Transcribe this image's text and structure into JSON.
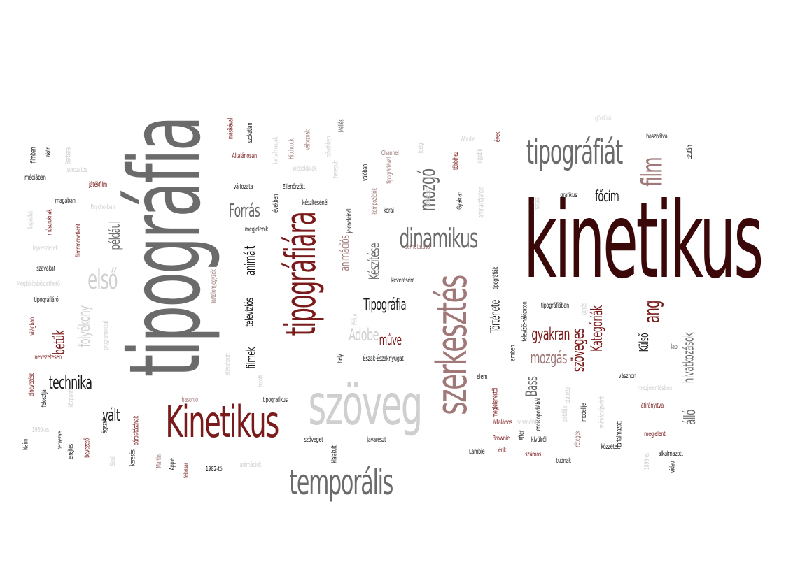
{
  "colors": {
    "dark_red": "#3a0808",
    "red": "#7a1a1a",
    "gray": "#6b6b6b",
    "light_gray": "#cfcfcf",
    "mauve": "#a07878",
    "black": "#1a1a1a"
  },
  "words": [
    {
      "text": "kinetikus",
      "color": "dark_red"
    },
    {
      "text": "tipográfia",
      "color": "gray"
    },
    {
      "text": "szöveg",
      "color": "light_gray"
    },
    {
      "text": "Kinetikus",
      "color": "red"
    },
    {
      "text": "szerkesztés",
      "color": "mauve"
    },
    {
      "text": "tipográfiára",
      "color": "red"
    },
    {
      "text": "temporális",
      "color": "gray"
    },
    {
      "text": "tipográfiát",
      "color": "gray"
    },
    {
      "text": "film",
      "color": "mauve"
    },
    {
      "text": "dinamikus",
      "color": "gray"
    },
    {
      "text": "mozgó",
      "color": "gray"
    },
    {
      "text": "első",
      "color": "light_gray"
    },
    {
      "text": "Forrás",
      "color": "gray"
    },
    {
      "text": "például",
      "color": "gray"
    },
    {
      "text": "technika",
      "color": "black"
    },
    {
      "text": "vált",
      "color": "black"
    },
    {
      "text": "betűk",
      "color": "red"
    },
    {
      "text": "folyékony",
      "color": "light_gray"
    },
    {
      "text": "animált",
      "color": "black"
    },
    {
      "text": "televíziós",
      "color": "black"
    },
    {
      "text": "filmek",
      "color": "black"
    },
    {
      "text": "Tipográfia",
      "color": "black"
    },
    {
      "text": "Adobe",
      "color": "light_gray"
    },
    {
      "text": "műve",
      "color": "red"
    },
    {
      "text": "Története",
      "color": "black"
    },
    {
      "text": "Bass",
      "color": "gray"
    },
    {
      "text": "gyakran",
      "color": "red"
    },
    {
      "text": "mozgás",
      "color": "mauve"
    },
    {
      "text": "Kategóriák",
      "color": "red"
    },
    {
      "text": "szöveges",
      "color": "red"
    },
    {
      "text": "ang",
      "color": "red"
    },
    {
      "text": "Külső",
      "color": "black"
    },
    {
      "text": "hivatkozások",
      "color": "gray"
    },
    {
      "text": "álló",
      "color": "gray"
    },
    {
      "text": "főcím",
      "color": "black"
    },
    {
      "text": "animációs",
      "color": "mauve"
    },
    {
      "text": "Készítése",
      "color": "gray"
    },
    {
      "text": "Ellenőrzött",
      "color": "black"
    },
    {
      "text": "változata",
      "color": "black"
    },
    {
      "text": "megjelenik",
      "color": "black"
    },
    {
      "text": "Általánosan",
      "color": "red"
    },
    {
      "text": "szokatlan",
      "color": "black"
    },
    {
      "text": "másikával",
      "color": "red"
    },
    {
      "text": "Hitchcock",
      "color": "mauve"
    },
    {
      "text": "tartalmaztak",
      "color": "light_gray"
    },
    {
      "text": "weboldalak",
      "color": "light_gray"
    },
    {
      "text": "változnak",
      "color": "mauve"
    },
    {
      "text": "bővebben",
      "color": "light_gray"
    },
    {
      "text": "Méliès",
      "color": "gray"
    },
    {
      "text": "herepult",
      "color": "light_gray"
    },
    {
      "text": "valóban",
      "color": "black"
    },
    {
      "text": "kompozíciók",
      "color": "mauve"
    },
    {
      "text": "tipográfiával",
      "color": "mauve"
    },
    {
      "text": "jeleneteinél",
      "color": "black"
    },
    {
      "text": "készítésénél",
      "color": "black"
    },
    {
      "text": "években",
      "color": "black"
    },
    {
      "text": "korai",
      "color": "black"
    },
    {
      "text": "Channel",
      "color": "mauve"
    },
    {
      "text": "ideig",
      "color": "light_gray"
    },
    {
      "text": "Wordle",
      "color": "light_gray"
    },
    {
      "text": "legjobb",
      "color": "light_gray"
    },
    {
      "text": "többihez",
      "color": "red"
    },
    {
      "text": "feldézzen",
      "color": "light_gray"
    },
    {
      "text": "Gyakran",
      "color": "black"
    },
    {
      "text": "animációjához",
      "color": "light_gray"
    },
    {
      "text": "évek",
      "color": "red"
    },
    {
      "text": "gördülő",
      "color": "light_gray"
    },
    {
      "text": "használva",
      "color": "black"
    },
    {
      "text": "Ezután",
      "color": "black"
    },
    {
      "text": "grafikus",
      "color": "black"
    },
    {
      "text": "hatást",
      "color": "light_gray"
    },
    {
      "text": "bemutatása",
      "color": "mauve"
    },
    {
      "text": "keverésére",
      "color": "black"
    },
    {
      "text": "tipográfiák",
      "color": "black"
    },
    {
      "text": "filmben",
      "color": "black"
    },
    {
      "text": "akár",
      "color": "black"
    },
    {
      "text": "Barbara",
      "color": "light_gray"
    },
    {
      "text": "sorozatos",
      "color": "light_gray"
    },
    {
      "text": "médiában",
      "color": "black"
    },
    {
      "text": "játékfilm",
      "color": "red"
    },
    {
      "text": "magában",
      "color": "black"
    },
    {
      "text": "Psycho-ban",
      "color": "light_gray"
    },
    {
      "text": "Segédlet",
      "color": "light_gray"
    },
    {
      "text": "műsoroknak",
      "color": "red"
    },
    {
      "text": "filmnmenetként",
      "color": "red"
    },
    {
      "text": "lapreszletek",
      "color": "light_gray"
    },
    {
      "text": "szavakat",
      "color": "black"
    },
    {
      "text": "Megkülönböztethető",
      "color": "light_gray"
    },
    {
      "text": "Tartalomjegyzék",
      "color": "mauve"
    },
    {
      "text": "tipográfiáról",
      "color": "black"
    },
    {
      "text": "világban",
      "color": "red"
    },
    {
      "text": "programokkal",
      "color": "light_gray"
    },
    {
      "text": "nevezetesen",
      "color": "red"
    },
    {
      "text": "ellenőrzött",
      "color": "light_gray"
    },
    {
      "text": "hely",
      "color": "black"
    },
    {
      "text": "Példa",
      "color": "light_gray"
    },
    {
      "text": "Észak-Északnyugat",
      "color": "black"
    },
    {
      "text": "elnevezése",
      "color": "red"
    },
    {
      "text": "felosztja",
      "color": "black"
    },
    {
      "text": "központi",
      "color": "light_gray"
    },
    {
      "text": "hasonló",
      "color": "mauve"
    },
    {
      "text": "futott",
      "color": "light_gray"
    },
    {
      "text": "tipografikus",
      "color": "black"
    },
    {
      "text": "szöveget",
      "color": "black"
    },
    {
      "text": "kialakult",
      "color": "black"
    },
    {
      "text": "javarészt",
      "color": "black"
    },
    {
      "text": "1960-as",
      "color": "light_gray"
    },
    {
      "text": "tervezve",
      "color": "black"
    },
    {
      "text": "Naim",
      "color": "black"
    },
    {
      "text": "elrejtés",
      "color": "black"
    },
    {
      "text": "bevezető",
      "color": "red"
    },
    {
      "text": "ágazata",
      "color": "black"
    },
    {
      "text": "párosításának",
      "color": "red"
    },
    {
      "text": "Saul",
      "color": "light_gray"
    },
    {
      "text": "keresés",
      "color": "black"
    },
    {
      "text": "Martin",
      "color": "mauve"
    },
    {
      "text": "Apple",
      "color": "black"
    },
    {
      "text": "február",
      "color": "red"
    },
    {
      "text": "1982-től",
      "color": "black"
    },
    {
      "text": "animációk",
      "color": "light_gray"
    },
    {
      "text": "elem",
      "color": "black"
    },
    {
      "text": "megjelenéstől",
      "color": "red"
    },
    {
      "text": "amiben",
      "color": "black"
    },
    {
      "text": "televízió-hálózaton",
      "color": "black"
    },
    {
      "text": "enciklopédiából",
      "color": "black"
    },
    {
      "text": "After",
      "color": "black"
    },
    {
      "text": "tipográfiában",
      "color": "black"
    },
    {
      "text": "Ugrás",
      "color": "light_gray"
    },
    {
      "text": "stábista",
      "color": "light_gray"
    },
    {
      "text": "modellje",
      "color": "black"
    },
    {
      "text": "animációjaként",
      "color": "light_gray"
    },
    {
      "text": "lap",
      "color": "gray"
    },
    {
      "text": "vásznon",
      "color": "black"
    },
    {
      "text": "megjelentésben",
      "color": "light_gray"
    },
    {
      "text": "átirányítva",
      "color": "red"
    },
    {
      "text": "általános",
      "color": "red"
    },
    {
      "text": "használata",
      "color": "light_gray"
    },
    {
      "text": "Brownie",
      "color": "red"
    },
    {
      "text": "kívülről",
      "color": "black"
    },
    {
      "text": "példája",
      "color": "light_gray"
    },
    {
      "text": "rétegek",
      "color": "mauve"
    },
    {
      "text": "tartalmazott",
      "color": "black"
    },
    {
      "text": "közzétett",
      "color": "black"
    },
    {
      "text": "megjelent",
      "color": "red"
    },
    {
      "text": "alkalmazott",
      "color": "black"
    },
    {
      "text": "Lambie",
      "color": "black"
    },
    {
      "text": "érik",
      "color": "red"
    },
    {
      "text": "számos",
      "color": "red"
    },
    {
      "text": "tudnak",
      "color": "black"
    },
    {
      "text": "1899-es",
      "color": "light_gray"
    },
    {
      "text": "video",
      "color": "black"
    }
  ]
}
